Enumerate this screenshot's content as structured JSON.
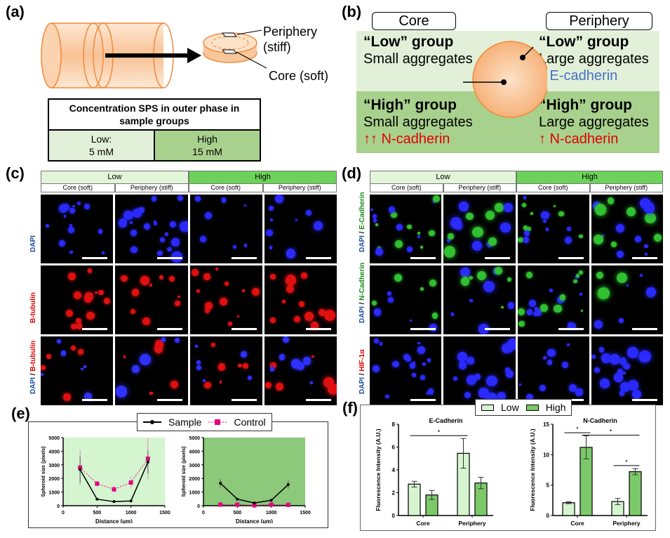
{
  "panel_a": {
    "label": "(a)",
    "periphery_label": "Periphery",
    "periphery_sub": "(stiff)",
    "core_label": "Core (soft)",
    "table_header": "Concentration SPS in outer phase in sample groups",
    "low_label": "Low:",
    "low_value": "5 mM",
    "high_label": "High",
    "high_value": "15 mM"
  },
  "panel_b": {
    "label": "(b)",
    "core_header": "Core",
    "periphery_header": "Periphery",
    "low_core_title": "“Low” group",
    "low_core_text": "Small aggregates",
    "low_peri_title": "“Low” group",
    "low_peri_text": "Large aggregates",
    "low_peri_marker": "↑ E-cadherin",
    "high_core_title": "“High” group",
    "high_core_text": "Small aggregates",
    "high_core_marker": "↑↑ N-cadherin",
    "high_peri_title": "“High” group",
    "high_peri_text": "Large aggregates",
    "high_peri_marker": "↑ N-cadherin",
    "colors": {
      "light": "#e2f0d9",
      "dark": "#a9d18e",
      "blue": "#4472c4",
      "red": "#e00000"
    }
  },
  "panel_c": {
    "label": "(c)",
    "groups": [
      "Low",
      "High"
    ],
    "columns": [
      "Core (soft)",
      "Periphery (stiff)",
      "Core (soft)",
      "Periphery (stiff)"
    ],
    "rows": [
      {
        "parts": [
          {
            "t": "DAPI",
            "c": "#1f4e9c"
          }
        ]
      },
      {
        "parts": [
          {
            "t": "B-tubulin",
            "c": "#e00000"
          }
        ]
      },
      {
        "parts": [
          {
            "t": "DAPI",
            "c": "#1f4e9c"
          },
          {
            "t": " / ",
            "c": "#000"
          },
          {
            "t": "B-tubulin",
            "c": "#e00000"
          }
        ]
      }
    ]
  },
  "panel_d": {
    "label": "(d)",
    "groups": [
      "Low",
      "High"
    ],
    "columns": [
      "Core (soft)",
      "Periphery (stiff)",
      "Core (soft)",
      "Periphery (stiff)"
    ],
    "rows": [
      {
        "parts": [
          {
            "t": "DAPI",
            "c": "#1f4e9c"
          },
          {
            "t": " / ",
            "c": "#000"
          },
          {
            "t": "E-Cadherin",
            "c": "#1a8a1a"
          }
        ]
      },
      {
        "parts": [
          {
            "t": "DAPI",
            "c": "#1f4e9c"
          },
          {
            "t": " / ",
            "c": "#000"
          },
          {
            "t": "N-Cadherin",
            "c": "#1a8a1a"
          }
        ]
      },
      {
        "parts": [
          {
            "t": "DAPI",
            "c": "#1f4e9c"
          },
          {
            "t": " / ",
            "c": "#000"
          },
          {
            "t": "HIF-1α",
            "c": "#e00000"
          }
        ]
      }
    ]
  },
  "panel_e": {
    "label": "(e)",
    "legend": [
      "Sample",
      "Control"
    ]
  },
  "panel_f": {
    "label": "(f)",
    "legend": [
      "Low",
      "High"
    ]
  },
  "chart_data": [
    {
      "type": "line",
      "panel": "e-left",
      "title": "",
      "xlabel": "Distance (μm)",
      "ylabel": "Spheroid size (pixels)",
      "xlim": [
        0,
        1500
      ],
      "ylim": [
        0,
        5000
      ],
      "xticks": [
        0,
        500,
        1000,
        1500
      ],
      "yticks": [
        0,
        1000,
        2000,
        3000,
        4000,
        5000
      ],
      "x": [
        250,
        500,
        750,
        1000,
        1250
      ],
      "background": "#d4f5cf",
      "series": [
        {
          "name": "Sample",
          "color": "#000000",
          "values": [
            2650,
            480,
            300,
            350,
            3200
          ],
          "errors": [
            950,
            80,
            100,
            80,
            850
          ]
        },
        {
          "name": "Control",
          "color": "#e6007e",
          "values": [
            2800,
            1620,
            1200,
            1700,
            3450
          ],
          "errors": [
            1300,
            200,
            250,
            420,
            1500
          ]
        }
      ]
    },
    {
      "type": "line",
      "panel": "e-right",
      "title": "",
      "xlabel": "Distance (μm)",
      "ylabel": "Spheroid size (pixels)",
      "xlim": [
        0,
        1500
      ],
      "ylim": [
        0,
        5000
      ],
      "xticks": [
        0,
        500,
        1000,
        1500
      ],
      "yticks": [
        0,
        1000,
        2000,
        3000,
        4000,
        5000
      ],
      "x": [
        250,
        500,
        750,
        1000,
        1250
      ],
      "background": "#8cc97a",
      "series": [
        {
          "name": "Sample",
          "color": "#000000",
          "values": [
            1650,
            480,
            200,
            400,
            1550
          ],
          "errors": [
            300,
            80,
            60,
            100,
            300
          ]
        },
        {
          "name": "Control",
          "color": "#e6007e",
          "values": [
            80,
            80,
            20,
            80,
            60
          ],
          "errors": [
            20,
            20,
            10,
            20,
            20
          ]
        }
      ]
    },
    {
      "type": "bar",
      "panel": "f-left",
      "title": "E-Cadherin",
      "ylabel": "Fluorescence Intensity (A.U.)",
      "categories": [
        "Core",
        "Periphery"
      ],
      "ylim": [
        0,
        8
      ],
      "yticks": [
        0,
        2,
        4,
        6,
        8
      ],
      "series": [
        {
          "name": "Low",
          "color": "#d6f5cf",
          "values": [
            2.75,
            5.45
          ],
          "errors": [
            0.25,
            1.3
          ]
        },
        {
          "name": "High",
          "color": "#7cc96a",
          "values": [
            1.8,
            2.85
          ],
          "errors": [
            0.4,
            0.5
          ]
        }
      ],
      "significance": [
        {
          "from": [
            0,
            0
          ],
          "to": [
            1,
            0
          ],
          "y": 7.0,
          "label": "*"
        }
      ]
    },
    {
      "type": "bar",
      "panel": "f-right",
      "title": "N-Cadherin",
      "ylabel": "Fluorescence Intensity (A.U.)",
      "categories": [
        "Core",
        "Periphery"
      ],
      "ylim": [
        0,
        15
      ],
      "yticks": [
        0,
        5,
        10,
        15
      ],
      "series": [
        {
          "name": "Low",
          "color": "#d6f5cf",
          "values": [
            2.1,
            2.3
          ],
          "errors": [
            0.15,
            0.5
          ]
        },
        {
          "name": "High",
          "color": "#7cc96a",
          "values": [
            11.2,
            7.2
          ],
          "errors": [
            1.9,
            0.5
          ]
        }
      ],
      "significance": [
        {
          "from": [
            0,
            0
          ],
          "to": [
            0,
            1
          ],
          "y": 13.6,
          "label": "*"
        },
        {
          "from": [
            0,
            1
          ],
          "to": [
            1,
            1
          ],
          "y": 13.2,
          "label": "*"
        },
        {
          "from": [
            1,
            0
          ],
          "to": [
            1,
            1
          ],
          "y": 8.2,
          "label": "*"
        }
      ]
    }
  ]
}
